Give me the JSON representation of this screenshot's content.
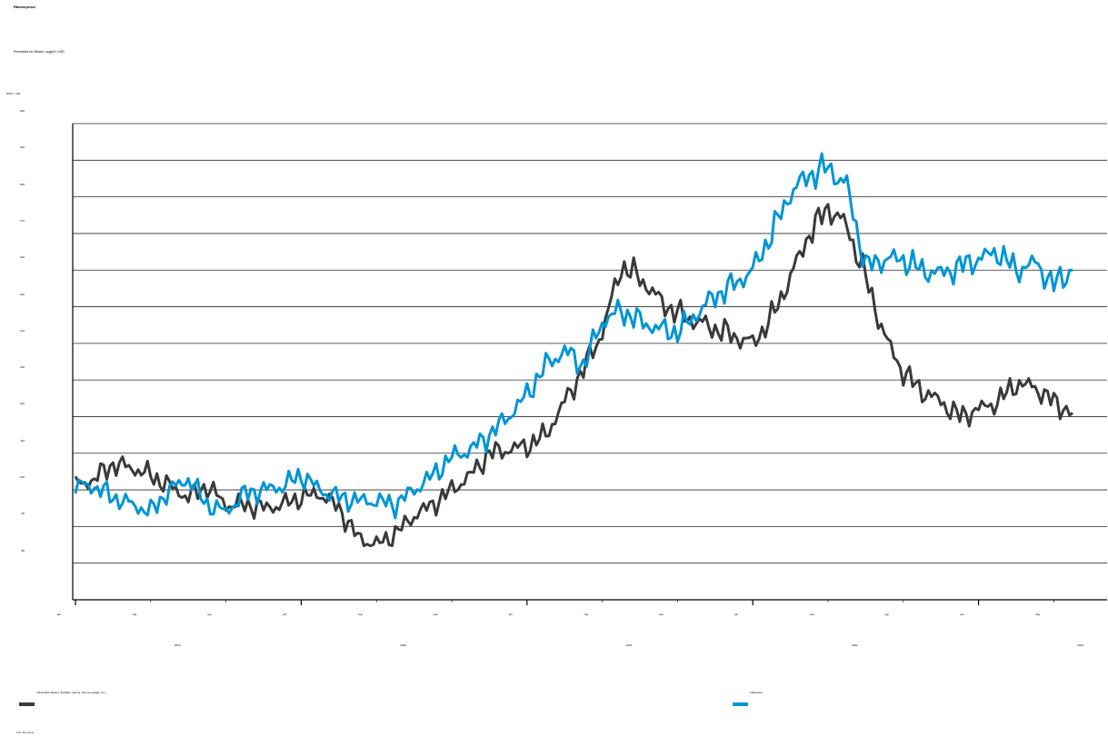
{
  "title": "Råvarepriser",
  "subtitle": "Prisindeks for råvarer, opgjort i USD",
  "unit": "2019 = 100",
  "source": "Kilde: Bloomberg",
  "colors": {
    "industrial": "#3a3a3a",
    "food": "#0095d6",
    "grid": "#2a2a2a"
  },
  "chart_data": {
    "type": "line",
    "title": "Råvarepriser",
    "subtitle": "Prisindeks for råvarer, opgjort i USD",
    "ylabel": "2019 = 100",
    "ylim": [
      70,
      200
    ],
    "y_ticks": [
      80,
      90,
      100,
      110,
      120,
      130,
      140,
      150,
      160,
      170,
      180,
      190,
      200
    ],
    "y_tick_labels": [
      "80",
      "90",
      "100",
      "110",
      "120",
      "130",
      "140",
      "150",
      "160",
      "170",
      "180",
      "190",
      "200"
    ],
    "x_month_labels": [
      "jan",
      "maj",
      "sep",
      "jan",
      "maj",
      "sep",
      "jan",
      "maj",
      "sep",
      "jan",
      "maj",
      "sep",
      "jan",
      "maj"
    ],
    "x_year_labels": [
      "2019",
      "2020",
      "2021",
      "2022",
      "2023"
    ],
    "legend_position": "bottom",
    "grid": true,
    "x": [
      "2019-01",
      "2019-02",
      "2019-03",
      "2019-04",
      "2019-05",
      "2019-06",
      "2019-07",
      "2019-08",
      "2019-09",
      "2019-10",
      "2019-11",
      "2019-12",
      "2020-01",
      "2020-02",
      "2020-03",
      "2020-04",
      "2020-05",
      "2020-06",
      "2020-07",
      "2020-08",
      "2020-09",
      "2020-10",
      "2020-11",
      "2020-12",
      "2021-01",
      "2021-02",
      "2021-03",
      "2021-04",
      "2021-05",
      "2021-06",
      "2021-07",
      "2021-08",
      "2021-09",
      "2021-10",
      "2021-11",
      "2021-12",
      "2022-01",
      "2022-02",
      "2022-03",
      "2022-04",
      "2022-05",
      "2022-06",
      "2022-07",
      "2022-08",
      "2022-09",
      "2022-10",
      "2022-11",
      "2022-12",
      "2023-01",
      "2023-02",
      "2023-03",
      "2023-04",
      "2023-05",
      "2023-06"
    ],
    "series": [
      {
        "name": "Industrielle råvarer (Tekstiler, gummi, træ og metaller mv.)",
        "values": [
          101,
          103,
          107,
          106,
          104,
          101,
          98,
          101,
          96,
          96,
          95,
          96,
          98,
          99,
          95,
          87,
          85,
          88,
          93,
          96,
          100,
          104,
          110,
          111,
          112,
          115,
          124,
          133,
          143,
          161,
          158,
          152,
          148,
          146,
          144,
          142,
          140,
          147,
          158,
          170,
          177,
          172,
          158,
          142,
          132,
          127,
          124,
          120,
          122,
          124,
          129,
          128,
          124,
          121
        ]
      },
      {
        "name": "Fødevarer",
        "values": [
          101,
          101,
          98,
          96,
          94,
          100,
          103,
          96,
          94,
          99,
          100,
          101,
          104,
          100,
          98,
          97,
          97,
          96,
          100,
          104,
          109,
          111,
          115,
          120,
          126,
          134,
          138,
          134,
          146,
          149,
          146,
          144,
          143,
          148,
          153,
          156,
          160,
          170,
          181,
          186,
          188,
          183,
          161,
          163,
          163,
          160,
          159,
          161,
          163,
          165,
          160,
          162,
          156,
          160
        ]
      }
    ]
  },
  "axis": {
    "y_tick_labels": [
      "80",
      "90",
      "100",
      "110",
      "120",
      "130",
      "140",
      "150",
      "160",
      "170",
      "180",
      "190",
      "200"
    ],
    "x_month_labels": [
      "jan",
      "maj",
      "sep",
      "jan",
      "maj",
      "sep",
      "jan",
      "maj",
      "sep",
      "jan",
      "maj",
      "sep",
      "jan",
      "maj"
    ],
    "x_year_labels": [
      "2019",
      "2020",
      "2021",
      "2022",
      "2023"
    ]
  },
  "legend": {
    "industrial": "Industrielle råvarer (Tekstiler, gummi, træ og metaller mv.)",
    "food": "Fødevarer"
  }
}
